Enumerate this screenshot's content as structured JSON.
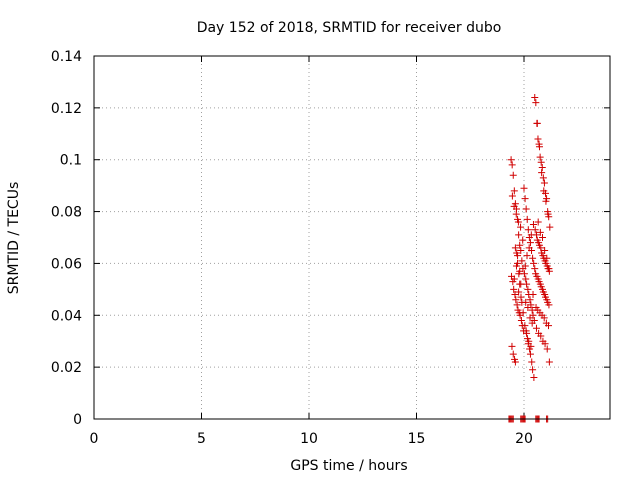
{
  "chart_data": {
    "type": "scatter",
    "title": "Day 152 of 2018, SRMTID for receiver dubo",
    "xlabel": "GPS time / hours",
    "ylabel": "SRMTID / TECUs",
    "xlim": [
      0,
      24
    ],
    "ylim": [
      0,
      0.14
    ],
    "xticks": [
      0,
      5,
      10,
      15,
      20
    ],
    "xtick_labels": [
      "0",
      "5",
      "10",
      "15",
      "20"
    ],
    "yticks": [
      0,
      0.02,
      0.04,
      0.06,
      0.08,
      0.1,
      0.12,
      0.14
    ],
    "ytick_labels": [
      "0",
      "0.02",
      "0.04",
      "0.06",
      "0.08",
      "0.1",
      "0.12",
      "0.14"
    ],
    "grid": true,
    "marker": "+",
    "color": "#d00000",
    "series": [
      {
        "name": "dubo",
        "x": [
          19.3,
          19.35,
          19.4,
          19.45,
          19.5,
          19.85,
          19.9,
          19.95,
          20.0,
          20.05,
          20.55,
          20.6,
          20.65,
          20.7,
          21.05,
          21.1,
          19.4,
          19.45,
          19.5,
          19.55,
          19.6,
          19.65,
          19.7,
          19.75,
          19.8,
          19.85,
          19.9,
          19.95,
          19.42,
          19.48,
          19.52,
          19.58,
          19.62,
          19.68,
          19.72,
          19.78,
          19.82,
          19.88,
          19.92,
          19.98,
          19.44,
          19.5,
          19.56,
          19.6,
          19.66,
          19.7,
          19.76,
          19.8,
          19.86,
          19.9,
          19.96,
          19.46,
          19.54,
          19.64,
          19.74,
          19.84,
          19.94,
          19.6,
          19.7,
          19.8,
          19.55,
          19.75,
          19.65,
          19.85,
          20.0,
          20.05,
          20.1,
          20.15,
          20.2,
          20.25,
          20.3,
          20.35,
          20.4,
          20.45,
          20.5,
          20.02,
          20.08,
          20.12,
          20.18,
          20.22,
          20.28,
          20.32,
          20.38,
          20.42,
          20.48,
          20.04,
          20.1,
          20.16,
          20.2,
          20.26,
          20.3,
          20.36,
          20.4,
          20.46,
          20.06,
          20.14,
          20.24,
          20.34,
          20.44,
          20.08,
          20.18,
          20.28,
          20.38,
          20.12,
          20.22,
          20.32,
          20.42,
          20.5,
          20.55,
          20.6,
          20.65,
          20.7,
          20.75,
          20.8,
          20.85,
          20.9,
          20.95,
          21.0,
          21.05,
          21.1,
          21.15,
          21.2,
          20.52,
          20.58,
          20.62,
          20.68,
          20.72,
          20.78,
          20.82,
          20.88,
          20.92,
          20.98,
          21.02,
          21.08,
          21.12,
          21.18,
          20.54,
          20.6,
          20.66,
          20.7,
          20.76,
          20.8,
          20.86,
          20.9,
          20.96,
          21.0,
          21.06,
          21.1,
          21.16,
          20.56,
          20.64,
          20.74,
          20.84,
          20.94,
          21.04,
          21.14,
          20.58,
          20.68,
          20.78,
          20.88,
          20.98,
          21.08,
          21.18,
          20.62,
          20.72,
          20.82,
          20.92,
          21.02,
          21.12,
          20.66,
          20.76,
          20.86,
          20.96,
          21.06,
          21.16
        ],
        "y": [
          0,
          0,
          0,
          0,
          0,
          0,
          0,
          0,
          0,
          0,
          0,
          0,
          0,
          0,
          0,
          0,
          0.1,
          0.098,
          0.094,
          0.088,
          0.083,
          0.081,
          0.077,
          0.071,
          0.067,
          0.065,
          0.061,
          0.058,
          0.055,
          0.053,
          0.05,
          0.048,
          0.046,
          0.044,
          0.042,
          0.041,
          0.04,
          0.038,
          0.036,
          0.034,
          0.028,
          0.025,
          0.023,
          0.022,
          0.064,
          0.06,
          0.056,
          0.052,
          0.047,
          0.045,
          0.041,
          0.086,
          0.082,
          0.079,
          0.076,
          0.074,
          0.069,
          0.066,
          0.063,
          0.057,
          0.054,
          0.049,
          0.059,
          0.052,
          0.089,
          0.085,
          0.081,
          0.077,
          0.073,
          0.07,
          0.068,
          0.065,
          0.062,
          0.06,
          0.058,
          0.056,
          0.054,
          0.052,
          0.05,
          0.048,
          0.046,
          0.044,
          0.042,
          0.04,
          0.038,
          0.036,
          0.034,
          0.031,
          0.029,
          0.027,
          0.025,
          0.022,
          0.019,
          0.016,
          0.059,
          0.063,
          0.066,
          0.071,
          0.075,
          0.045,
          0.043,
          0.039,
          0.037,
          0.033,
          0.03,
          0.028,
          0.048,
          0.124,
          0.122,
          0.114,
          0.108,
          0.106,
          0.101,
          0.099,
          0.097,
          0.093,
          0.091,
          0.087,
          0.085,
          0.08,
          0.078,
          0.074,
          0.073,
          0.071,
          0.069,
          0.068,
          0.067,
          0.066,
          0.064,
          0.063,
          0.062,
          0.061,
          0.06,
          0.059,
          0.058,
          0.057,
          0.056,
          0.055,
          0.054,
          0.053,
          0.052,
          0.051,
          0.05,
          0.049,
          0.048,
          0.047,
          0.046,
          0.045,
          0.044,
          0.043,
          0.042,
          0.041,
          0.04,
          0.039,
          0.037,
          0.036,
          0.035,
          0.033,
          0.032,
          0.03,
          0.029,
          0.027,
          0.022,
          0.114,
          0.105,
          0.095,
          0.088,
          0.084,
          0.079,
          0.076,
          0.072,
          0.07,
          0.065,
          0.062,
          0.058
        ]
      }
    ]
  }
}
